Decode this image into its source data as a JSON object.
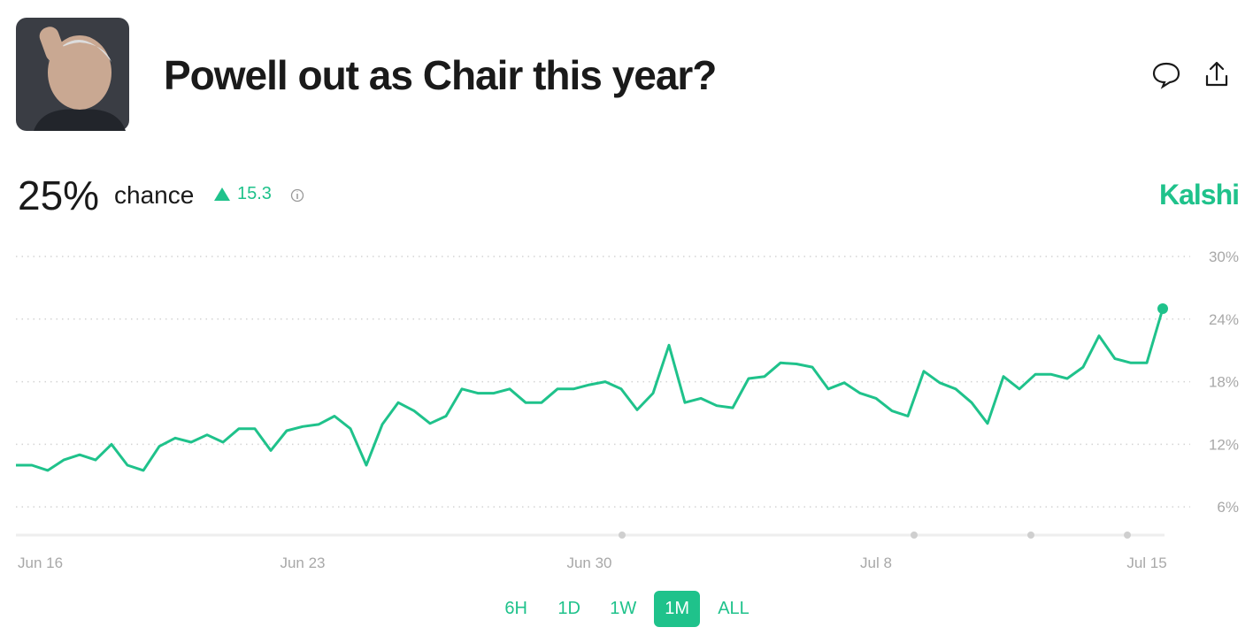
{
  "header": {
    "title": "Powell out as Chair this year?"
  },
  "summary": {
    "chance": "25%",
    "chance_label": "chance",
    "change": "15.3",
    "brand": "Kalshi"
  },
  "ranges": {
    "options": [
      "6H",
      "1D",
      "1W",
      "1M",
      "ALL"
    ],
    "selected": "1M"
  },
  "chart_data": {
    "type": "line",
    "color": "#1fc28b",
    "categories": [
      "Jun 16",
      null,
      null,
      null,
      null,
      null,
      null,
      null,
      null,
      null,
      null,
      null,
      null,
      null,
      null,
      null,
      null,
      null,
      "Jun 23",
      null,
      null,
      null,
      null,
      null,
      null,
      null,
      null,
      null,
      null,
      null,
      null,
      null,
      null,
      null,
      null,
      null,
      "Jun 30",
      null,
      null,
      null,
      null,
      null,
      null,
      null,
      null,
      null,
      null,
      null,
      null,
      null,
      null,
      null,
      null,
      null,
      "Jul 8",
      null,
      null,
      null,
      null,
      null,
      null,
      null,
      null,
      null,
      null,
      null,
      null,
      null,
      null,
      null,
      null,
      "Jul 15",
      null
    ],
    "values": [
      10,
      10,
      9.5,
      10.5,
      11,
      10.5,
      12,
      10,
      9.5,
      11.8,
      12.6,
      12.2,
      12.9,
      12.2,
      13.5,
      13.5,
      11.4,
      13.3,
      13.7,
      13.9,
      14.7,
      13.5,
      10,
      13.9,
      16,
      15.2,
      14,
      14.7,
      17.3,
      16.9,
      16.9,
      17.3,
      16,
      16,
      17.3,
      17.3,
      17.7,
      18,
      17.3,
      15.3,
      16.9,
      21.5,
      16,
      16.4,
      15.7,
      15.5,
      18.3,
      18.5,
      19.8,
      19.7,
      19.4,
      17.3,
      17.9,
      16.9,
      16.4,
      15.2,
      14.7,
      19,
      17.9,
      17.3,
      16,
      14,
      18.5,
      17.3,
      18.7,
      18.7,
      18.3,
      19.4,
      22.4,
      20.2,
      19.8,
      19.8,
      25
    ],
    "ylim": [
      3.3,
      30
    ],
    "yticks": [
      {
        "value": 6,
        "label": "6%"
      },
      {
        "value": 12,
        "label": "12%"
      },
      {
        "value": 18,
        "label": "18%"
      },
      {
        "value": 24,
        "label": "24%"
      },
      {
        "value": 30,
        "label": "30%"
      }
    ],
    "grid": true
  }
}
